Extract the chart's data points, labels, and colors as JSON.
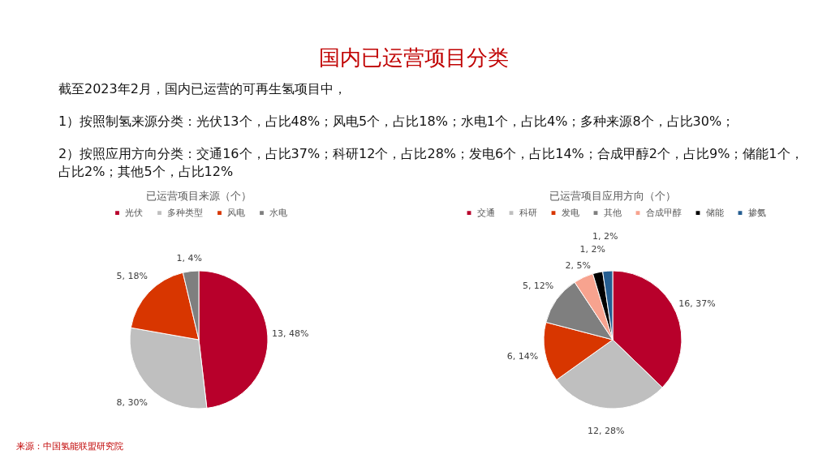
{
  "chart_data": [
    {
      "type": "other",
      "title": "国内已运营项目分类",
      "annotations": [
        "截至2023年2月，国内已运营的可再生氢项目中，",
        "1）按照制氢来源分类：光伏13个，占比48%；风电5个，占比18%；水电1个，占比4%；多种来源8个，占比30%；",
        "2）按照应用方向分类：交通16个，占比37%；科研12个，占比28%；发电6个，占比14%；合成甲醇2个，占比9%；储能1个，占比2%；其他5个，占比12%"
      ]
    },
    {
      "type": "pie",
      "title": "已运营项目来源（个）",
      "categories": [
        "光伏",
        "多种类型",
        "风电",
        "水电"
      ],
      "values": [
        13,
        8,
        5,
        1
      ],
      "colors": [
        "#b8002b",
        "#bfbfbf",
        "#d83600",
        "#7f7f7f"
      ],
      "value_labels": [
        "13, 48%",
        "8, 30%",
        "5, 18%",
        "1, 4%"
      ],
      "legend": "top"
    },
    {
      "type": "pie",
      "title": "已运营项目应用方向（个）",
      "categories": [
        "交通",
        "科研",
        "发电",
        "其他",
        "合成甲醇",
        "储能",
        "掺氨"
      ],
      "values": [
        16,
        12,
        6,
        5,
        2,
        1,
        1
      ],
      "colors": [
        "#b8002b",
        "#bfbfbf",
        "#d83600",
        "#7f7f7f",
        "#f7a38f",
        "#000000",
        "#255e91"
      ],
      "value_labels": [
        "16, 37%",
        "12, 28%",
        "6, 14%",
        "5, 12%",
        "2, 5%",
        "1, 2%",
        "1, 2%"
      ],
      "legend": "top"
    },
    {
      "type": "other",
      "annotations": [
        "来源：中国氢能联盟研究院"
      ]
    }
  ]
}
